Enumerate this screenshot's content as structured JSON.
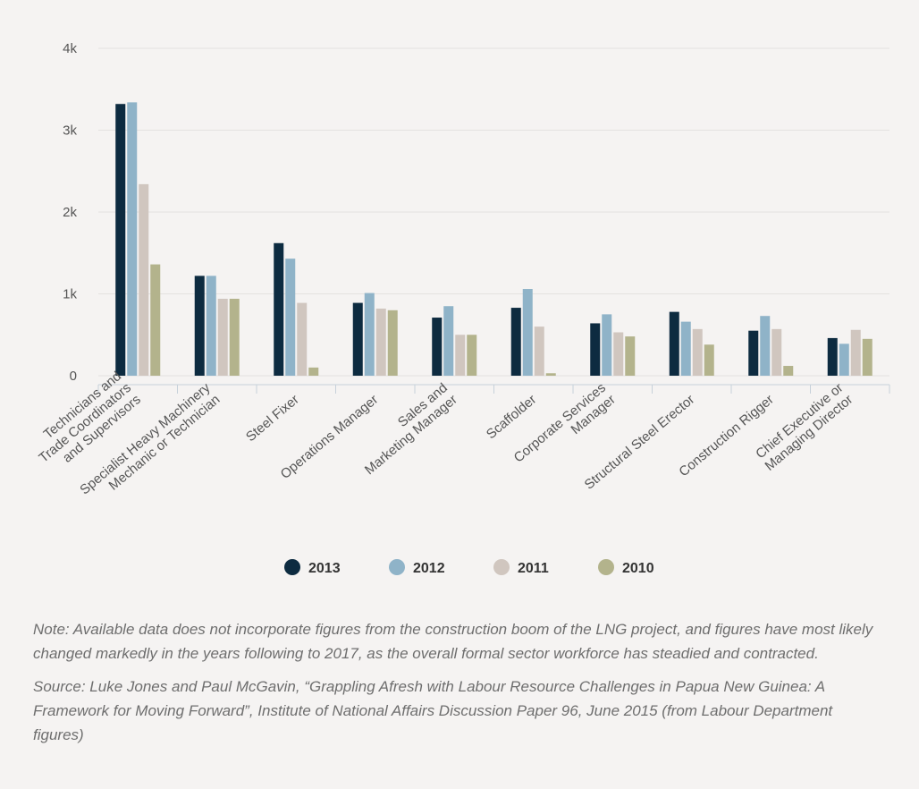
{
  "chart_data": {
    "type": "bar",
    "categories": [
      "Technicians and\nTrade Coordinators\nand Supervisors",
      "Specialist Heavy Machinery\nMechanic or Technician",
      "Steel Fixer",
      "Operations Manager",
      "Sales and\nMarketing Manager",
      "Scaffolder",
      "Corporate Services\nManager",
      "Structural Steel Erector",
      "Construction Rigger",
      "Chief Executive or\nManaging Director"
    ],
    "series": [
      {
        "name": "2013",
        "color": "#0d2b40",
        "values": [
          3320,
          1220,
          1620,
          890,
          710,
          830,
          640,
          780,
          550,
          460
        ]
      },
      {
        "name": "2012",
        "color": "#8fb3c8",
        "values": [
          3340,
          1220,
          1430,
          1010,
          850,
          1060,
          750,
          660,
          730,
          390
        ]
      },
      {
        "name": "2011",
        "color": "#d0c6bf",
        "values": [
          2340,
          940,
          890,
          820,
          500,
          600,
          530,
          570,
          570,
          560
        ]
      },
      {
        "name": "2010",
        "color": "#b3b38c",
        "values": [
          1360,
          940,
          100,
          800,
          500,
          30,
          480,
          380,
          120,
          450
        ]
      }
    ],
    "ylim": [
      0,
      4000
    ],
    "yticks": [
      0,
      {
        "value": 1000,
        "label": "1k"
      },
      {
        "value": 2000,
        "label": "2k"
      },
      {
        "value": 3000,
        "label": "3k"
      },
      {
        "value": 4000,
        "label": "4k"
      }
    ],
    "grid": true,
    "legend": "bottom",
    "note": "Note: Available data does not incorporate figures from the construction boom of the LNG project, and figures have most likely changed markedly in the years following to 2017, as the overall formal sector workforce has steadied and contracted.",
    "source": "Source: Luke Jones and Paul McGavin, “Grappling Afresh with Labour Resource Challenges in Papua New Guinea: A Framework for Moving Forward”, Institute of National Affairs Discussion Paper 96, June 2015 (from Labour Department figures)"
  }
}
